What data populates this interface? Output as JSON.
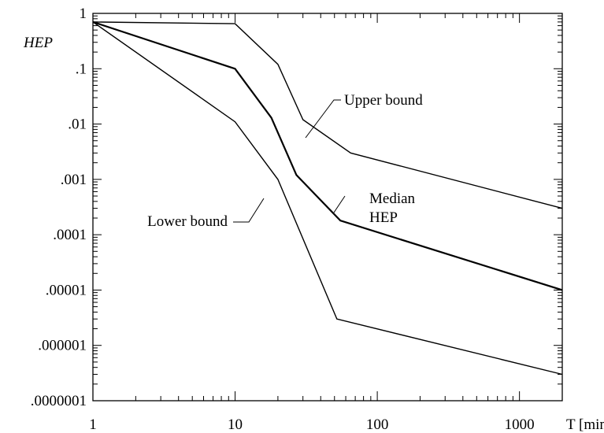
{
  "chart_data": {
    "type": "line",
    "title": "",
    "xlabel": "T [min.]",
    "ylabel": "HEP",
    "xscale": "log",
    "yscale": "log",
    "xlim": [
      1,
      2000
    ],
    "ylim": [
      1e-07,
      1
    ],
    "grid": false,
    "x_ticks": [
      {
        "value": 1,
        "label": "1"
      },
      {
        "value": 10,
        "label": "10"
      },
      {
        "value": 100,
        "label": "100"
      },
      {
        "value": 1000,
        "label": "1000"
      }
    ],
    "y_ticks": [
      {
        "value": 1,
        "label": "1"
      },
      {
        "value": 0.1,
        "label": ".1"
      },
      {
        "value": 0.01,
        "label": ".01"
      },
      {
        "value": 0.001,
        "label": ".001"
      },
      {
        "value": 0.0001,
        "label": ".0001"
      },
      {
        "value": 1e-05,
        "label": ".00001"
      },
      {
        "value": 1e-06,
        "label": ".000001"
      },
      {
        "value": 1e-07,
        "label": ".0000001"
      }
    ],
    "series": [
      {
        "name": "Upper bound",
        "points": [
          [
            1,
            0.7
          ],
          [
            10,
            0.65
          ],
          [
            20,
            0.12
          ],
          [
            30,
            0.012
          ],
          [
            65,
            0.003
          ],
          [
            2000,
            0.0003
          ]
        ]
      },
      {
        "name": "Median HEP",
        "points": [
          [
            1,
            0.7
          ],
          [
            10,
            0.1
          ],
          [
            18,
            0.013
          ],
          [
            27,
            0.0012
          ],
          [
            55,
            0.00018
          ],
          [
            2000,
            1e-05
          ]
        ]
      },
      {
        "name": "Lower bound",
        "points": [
          [
            1,
            0.7
          ],
          [
            10,
            0.011
          ],
          [
            20,
            0.001
          ],
          [
            52,
            3e-06
          ],
          [
            2000,
            3e-07
          ]
        ]
      }
    ],
    "annotations": [
      {
        "text": "Upper bound",
        "series": 0,
        "lines": [
          "Upper bound"
        ]
      },
      {
        "text": "Median HEP",
        "series": 1,
        "lines": [
          "Median",
          "HEP"
        ]
      },
      {
        "text": "Lower bound",
        "series": 2,
        "lines": [
          "Lower bound"
        ]
      }
    ]
  }
}
